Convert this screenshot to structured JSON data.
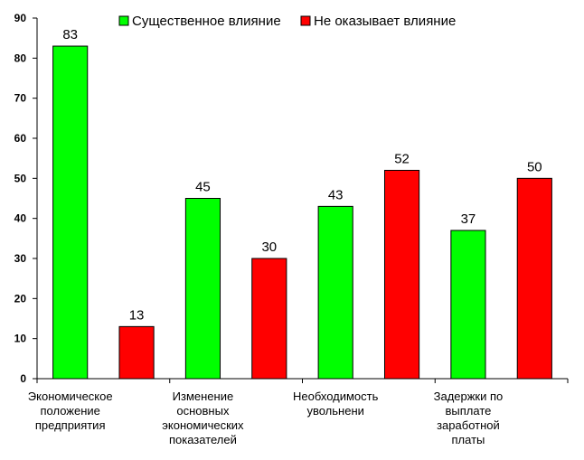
{
  "chart_data": {
    "type": "bar",
    "categories": [
      [
        "Экономическое",
        "положение",
        "предприятия"
      ],
      [
        "Изменение",
        "основных",
        "экономических",
        "показателей"
      ],
      [
        "Необходимость",
        "увольнени"
      ],
      [
        "Задержки по",
        "выплате",
        "заработной",
        "платы"
      ]
    ],
    "series": [
      {
        "name": "Существенное влияние",
        "color": "#00ff00",
        "values": [
          83,
          45,
          43,
          37
        ]
      },
      {
        "name": "Не оказывает влияние",
        "color": "#ff0000",
        "values": [
          13,
          30,
          52,
          50
        ]
      }
    ],
    "ylim": [
      0,
      90
    ],
    "yticks": [
      0,
      10,
      20,
      30,
      40,
      50,
      60,
      70,
      80,
      90
    ],
    "legend_position": "top",
    "grid": false
  }
}
